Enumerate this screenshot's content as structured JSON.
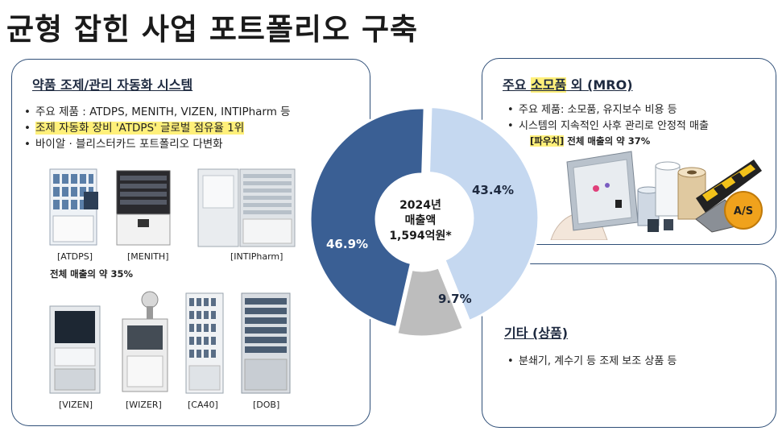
{
  "page": {
    "title": "균형 잡힌 사업 포트폴리오 구축"
  },
  "left_panel": {
    "title": "약품 조제/관리 자동화 시스템",
    "bullets": [
      "주요 제품 : ATDPS,  MENITH, VIZEN, INTIPharm 등",
      "조제 자동화 장비 'ATDPS' 글로벌 점유율 1위",
      "바이알 · 블리스터카드 포트폴리오 다변화"
    ],
    "bullet_symbol": "•",
    "products_row1": [
      "[ATDPS]",
      "[MENITH]",
      "[INTIPharm]"
    ],
    "products_row2": [
      "[VIZEN]",
      "[WIZER]",
      "[CA40]",
      "[DOB]"
    ],
    "share_note": "전체 매출의 약 35%"
  },
  "mro_panel": {
    "title_prefix": "주요 ",
    "title_highlight": "소모품",
    "title_suffix": " 외 (MRO)",
    "bullets": [
      "주요 제품: 소모품, 유지보수 비용 등",
      "시스템의 지속적인 사후 관리로 안정적 매출"
    ],
    "share_highlight": "[파우치]",
    "share_note": " 전체 매출의 약 37%",
    "as_badge": "A/S"
  },
  "etc_panel": {
    "title": "기타 (상품)",
    "bullets": [
      "분쇄기, 계수기 등 조제 보조 상품 등"
    ]
  },
  "chart_data": {
    "type": "pie",
    "donut": true,
    "center_label": [
      "2024년",
      "매출액",
      "1,594억원*"
    ],
    "slices": [
      {
        "label": "43.4%",
        "value": 43.4,
        "color": "#c5d8f0"
      },
      {
        "label": "9.7%",
        "value": 9.7,
        "color": "#bdbdbd"
      },
      {
        "label": "46.9%",
        "value": 46.9,
        "color": "#3a5f94"
      }
    ]
  }
}
